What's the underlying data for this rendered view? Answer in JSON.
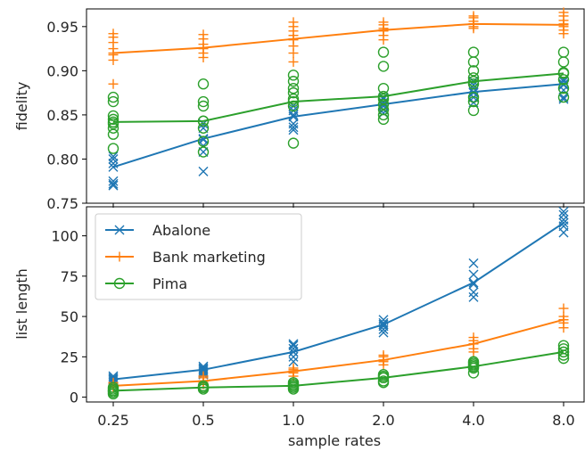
{
  "chart_data": {
    "type": "line",
    "shared_xlabel": "sample rates",
    "categories": [
      "0.25",
      "0.5",
      "1.0",
      "2.0",
      "4.0",
      "8.0"
    ],
    "colors": {
      "Abalone": "#1f77b4",
      "Bank marketing": "#ff7f0e",
      "Pima": "#2ca02c"
    },
    "markers": {
      "Abalone": "x",
      "Bank marketing": "+",
      "Pima": "o"
    },
    "legend": {
      "placement": "upper-left",
      "panel": "bottom",
      "entries": [
        "Abalone",
        "Bank marketing",
        "Pima"
      ]
    },
    "panels": [
      {
        "ylabel": "fidelity",
        "ylim": [
          0.75,
          0.97
        ],
        "yticks": [
          "0.75",
          "0.80",
          "0.85",
          "0.90",
          "0.95"
        ],
        "series": [
          {
            "name": "Abalone",
            "values": [
              0.791,
              0.823,
              0.848,
              0.862,
              0.876,
              0.885
            ],
            "scatter": [
              [
                0.77,
                0.772,
                0.775,
                0.795,
                0.8,
                0.803
              ],
              [
                0.786,
                0.808,
                0.815,
                0.822,
                0.835,
                0.84
              ],
              [
                0.833,
                0.836,
                0.84,
                0.85,
                0.855,
                0.86
              ],
              [
                0.852,
                0.856,
                0.86,
                0.864,
                0.868,
                0.87
              ],
              [
                0.864,
                0.87,
                0.875,
                0.88,
                0.884,
                0.888
              ],
              [
                0.868,
                0.87,
                0.878,
                0.884,
                0.888,
                0.89
              ]
            ]
          },
          {
            "name": "Bank marketing",
            "values": [
              0.92,
              0.926,
              0.936,
              0.946,
              0.953,
              0.952
            ],
            "scatter": [
              [
                0.885,
                0.912,
                0.918,
                0.925,
                0.932,
                0.938,
                0.942
              ],
              [
                0.915,
                0.92,
                0.925,
                0.93,
                0.936,
                0.941
              ],
              [
                0.91,
                0.92,
                0.928,
                0.935,
                0.94,
                0.945,
                0.95,
                0.955
              ],
              [
                0.935,
                0.94,
                0.945,
                0.948,
                0.952,
                0.955
              ],
              [
                0.948,
                0.95,
                0.953,
                0.956,
                0.96,
                0.962
              ],
              [
                0.942,
                0.946,
                0.95,
                0.953,
                0.957,
                0.962,
                0.966
              ]
            ]
          },
          {
            "name": "Pima",
            "values": [
              0.842,
              0.843,
              0.865,
              0.871,
              0.888,
              0.897
            ],
            "scatter": [
              [
                0.812,
                0.828,
                0.835,
                0.84,
                0.845,
                0.849,
                0.865,
                0.87
              ],
              [
                0.808,
                0.82,
                0.835,
                0.843,
                0.86,
                0.865,
                0.885
              ],
              [
                0.818,
                0.86,
                0.868,
                0.875,
                0.88,
                0.888,
                0.895
              ],
              [
                0.845,
                0.85,
                0.856,
                0.862,
                0.868,
                0.88,
                0.905,
                0.921
              ],
              [
                0.855,
                0.865,
                0.87,
                0.885,
                0.892,
                0.9,
                0.91,
                0.921
              ],
              [
                0.87,
                0.88,
                0.89,
                0.898,
                0.91,
                0.921
              ]
            ]
          }
        ]
      },
      {
        "ylabel": "list length",
        "ylim": [
          -3,
          118
        ],
        "yticks": [
          "0",
          "25",
          "50",
          "75",
          "100"
        ],
        "series": [
          {
            "name": "Abalone",
            "values": [
              11,
              17,
              28,
              45,
              71,
              108
            ],
            "scatter": [
              [
                9,
                10,
                11,
                12,
                13
              ],
              [
                14,
                15,
                16,
                17,
                18,
                19
              ],
              [
                22,
                25,
                28,
                30,
                32,
                33
              ],
              [
                40,
                42,
                44,
                46,
                48
              ],
              [
                62,
                65,
                70,
                76,
                83
              ],
              [
                102,
                106,
                110,
                113,
                115
              ]
            ]
          },
          {
            "name": "Bank marketing",
            "values": [
              7,
              10,
              16,
              23,
              33,
              48
            ],
            "scatter": [
              [
                6,
                7,
                8,
                9
              ],
              [
                8,
                9,
                10,
                12,
                13
              ],
              [
                13,
                15,
                16,
                17,
                18
              ],
              [
                20,
                22,
                23,
                25,
                26
              ],
              [
                28,
                30,
                33,
                35,
                37
              ],
              [
                43,
                46,
                48,
                50,
                55
              ]
            ]
          },
          {
            "name": "Pima",
            "values": [
              4,
              6,
              7,
              12,
              19,
              28
            ],
            "scatter": [
              [
                2,
                3,
                4,
                5,
                6
              ],
              [
                5,
                6,
                7
              ],
              [
                5,
                6,
                7,
                8,
                9
              ],
              [
                9,
                10,
                12,
                13,
                14
              ],
              [
                15,
                18,
                19,
                20,
                21,
                22
              ],
              [
                24,
                26,
                28,
                30,
                32
              ]
            ]
          }
        ]
      }
    ]
  }
}
